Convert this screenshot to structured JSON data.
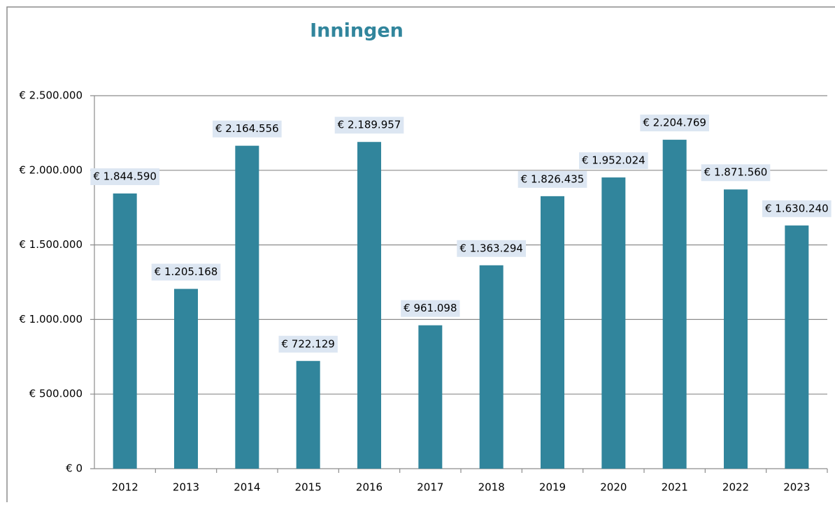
{
  "chart_data": {
    "type": "bar",
    "title": "Inningen",
    "categories": [
      "2012",
      "2013",
      "2014",
      "2015",
      "2016",
      "2017",
      "2018",
      "2019",
      "2020",
      "2021",
      "2022",
      "2023"
    ],
    "values": [
      1844590,
      1205168,
      2164556,
      722129,
      2189957,
      961098,
      1363294,
      1826435,
      1952024,
      2204769,
      1871560,
      1630240
    ],
    "value_labels": [
      "€ 1.844.590",
      "€ 1.205.168",
      "€ 2.164.556",
      "€ 722.129",
      "€ 2.189.957",
      "€ 961.098",
      "€ 1.363.294",
      "€ 1.826.435",
      "€ 1.952.024",
      "€ 2.204.769",
      "€ 1.871.560",
      "€ 1.630.240"
    ],
    "color": "#31859c",
    "ylim": [
      0,
      2500000
    ],
    "yticks": [
      {
        "value": 0,
        "label": "€ 0"
      },
      {
        "value": 500000,
        "label": "€ 500.000"
      },
      {
        "value": 1000000,
        "label": "€ 1.000.000"
      },
      {
        "value": 1500000,
        "label": "€ 1.500.000"
      },
      {
        "value": 2000000,
        "label": "€ 2.000.000"
      },
      {
        "value": 2500000,
        "label": "€ 2.500.000"
      }
    ],
    "grid": true
  }
}
